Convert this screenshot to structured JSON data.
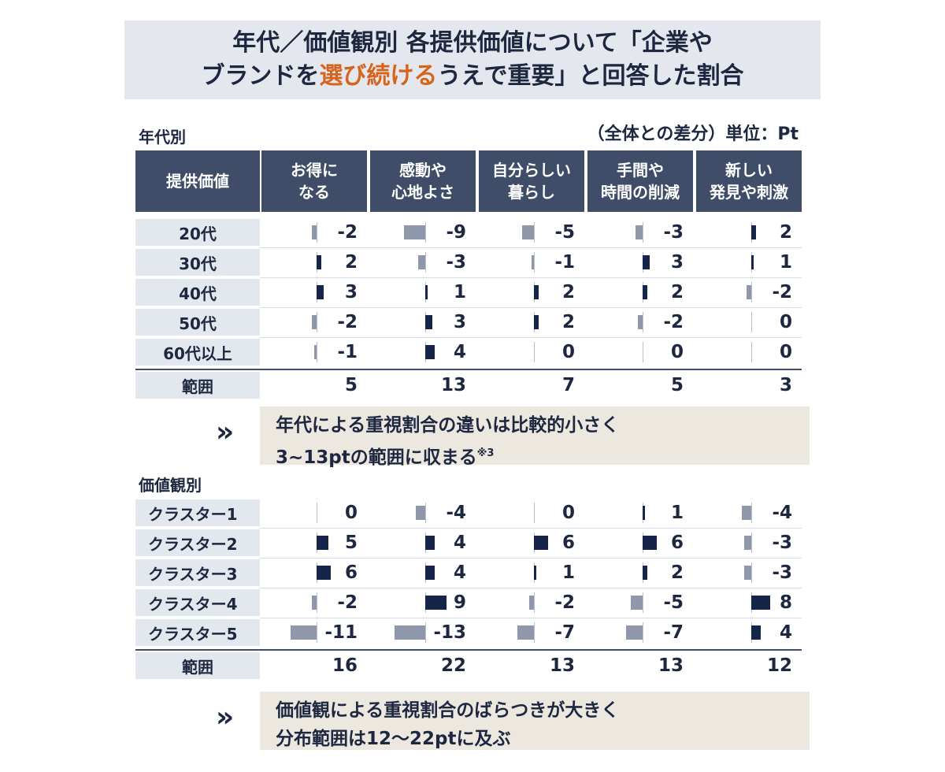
{
  "title": {
    "line1": "年代／価値観別 各提供価値について「企業や",
    "line2_pre": "ブランドを",
    "line2_highlight": "選び続ける",
    "line2_post": "うえで重要」と回答した割合"
  },
  "unit_note": "（全体との差分）単位：Pt",
  "colors": {
    "positive_bar": "#16244a",
    "negative_bar": "#8f98aa",
    "header_bg": "#3f4d68",
    "highlight": "#d7641c"
  },
  "chart_data": [
    {
      "type": "table",
      "section_label": "年代別",
      "row_header": "提供価値",
      "columns": [
        {
          "line1": "お得に",
          "line2": "なる"
        },
        {
          "line1": "感動や",
          "line2": "心地よさ"
        },
        {
          "line1": "自分らしい",
          "line2": "暮らし"
        },
        {
          "line1": "手間や",
          "line2": "時間の削減"
        },
        {
          "line1": "新しい",
          "line2": "発見や刺激"
        }
      ],
      "rows": [
        {
          "label": "20代",
          "values": [
            -2,
            -9,
            -5,
            -3,
            2
          ]
        },
        {
          "label": "30代",
          "values": [
            2,
            -3,
            -1,
            3,
            1
          ]
        },
        {
          "label": "40代",
          "values": [
            3,
            1,
            2,
            2,
            -2
          ]
        },
        {
          "label": "50代",
          "values": [
            -2,
            3,
            2,
            -2,
            0
          ]
        },
        {
          "label": "60代以上",
          "values": [
            -1,
            4,
            0,
            0,
            0
          ]
        }
      ],
      "range_label": "範囲",
      "range": [
        5,
        13,
        7,
        5,
        3
      ],
      "note": {
        "chevron": "»",
        "line1": "年代による重視割合の違いは比較的小さく",
        "line2": "3~13ptの範囲に収まる",
        "mark": "※3"
      }
    },
    {
      "type": "table",
      "section_label": "価値観別",
      "rows": [
        {
          "label": "クラスター1",
          "values": [
            0,
            -4,
            0,
            1,
            -4
          ]
        },
        {
          "label": "クラスター2",
          "values": [
            5,
            4,
            6,
            6,
            -3
          ]
        },
        {
          "label": "クラスター3",
          "values": [
            6,
            4,
            1,
            2,
            -3
          ]
        },
        {
          "label": "クラスター4",
          "values": [
            -2,
            9,
            -2,
            -5,
            8
          ]
        },
        {
          "label": "クラスター5",
          "values": [
            -11,
            -13,
            -7,
            -7,
            4
          ]
        }
      ],
      "range_label": "範囲",
      "range": [
        16,
        22,
        13,
        13,
        12
      ],
      "note": {
        "chevron": "»",
        "line1": "価値観による重視割合のばらつきが大きく",
        "line2": "分布範囲は12～22ptに及ぶ"
      }
    }
  ]
}
